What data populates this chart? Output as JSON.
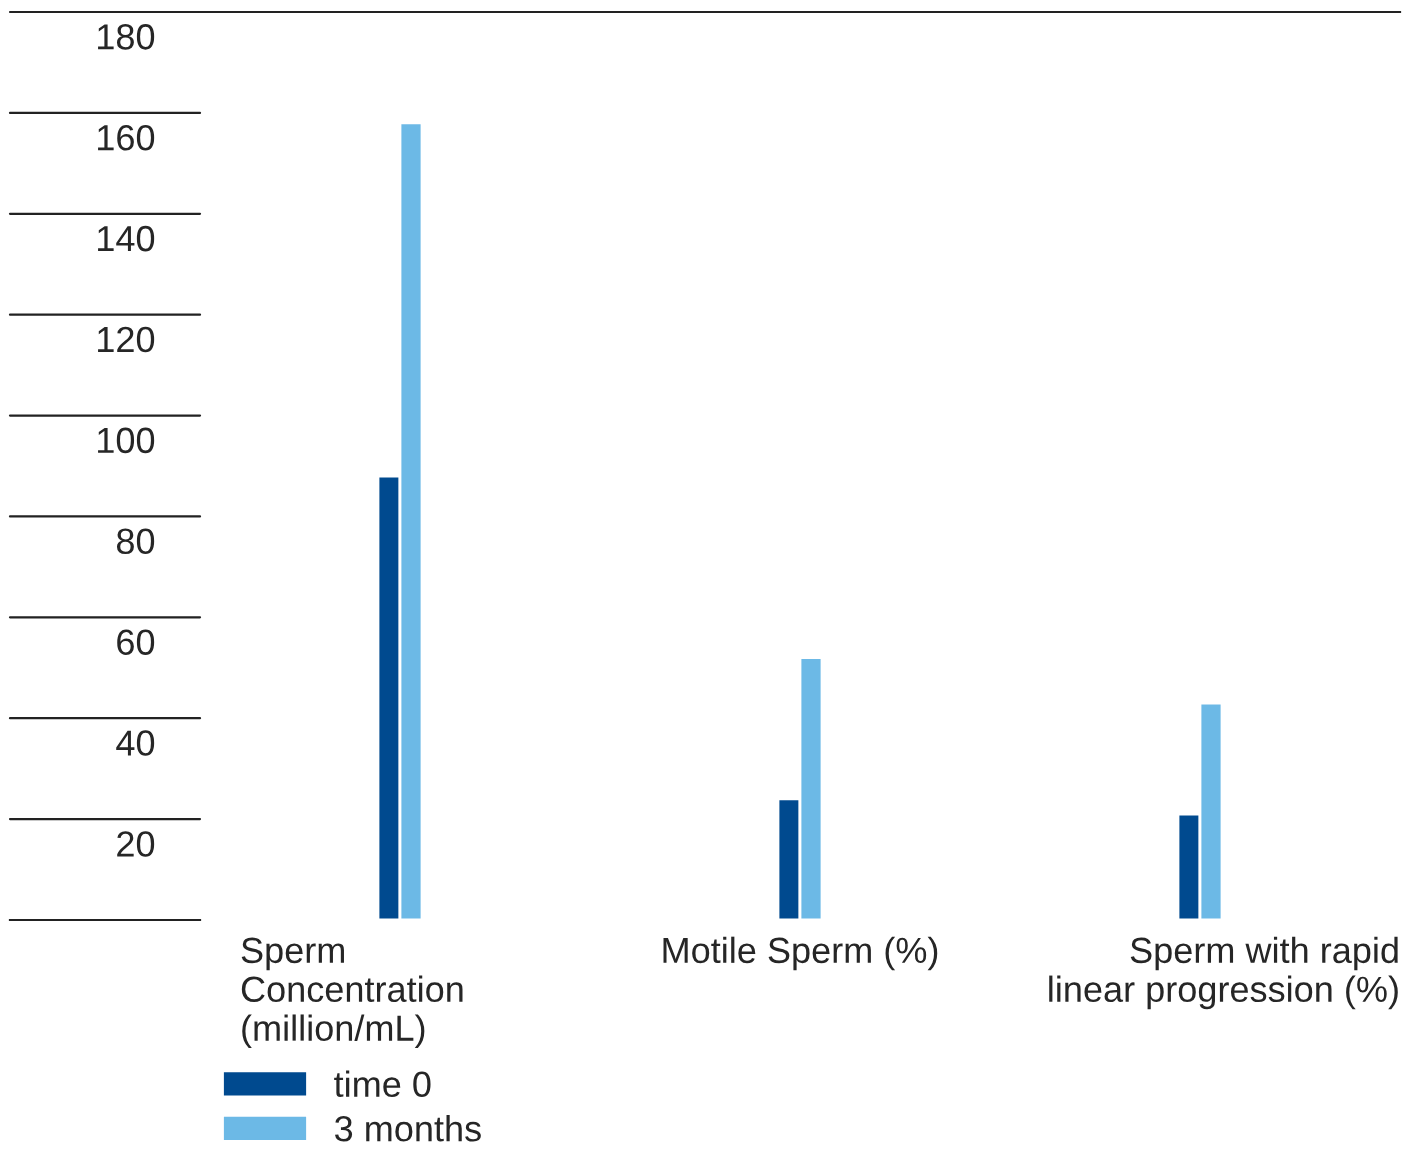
{
  "chart_data": {
    "type": "bar",
    "categories": [
      "Sperm\nConcentration\n(million/mL)",
      "Motile Sperm (%)",
      "Sperm with rapid\nlinear progression (%)"
    ],
    "series": [
      {
        "name": "time 0",
        "color": "#004a8f",
        "values": [
          88,
          24,
          21
        ]
      },
      {
        "name": "3 months",
        "color": "#6cb9e6",
        "values": [
          158,
          52,
          43
        ]
      }
    ],
    "ylim": [
      0,
      180
    ],
    "yticks": [
      20,
      40,
      60,
      80,
      100,
      120,
      140,
      160,
      180
    ],
    "grid": false,
    "legend": "bottom left"
  }
}
